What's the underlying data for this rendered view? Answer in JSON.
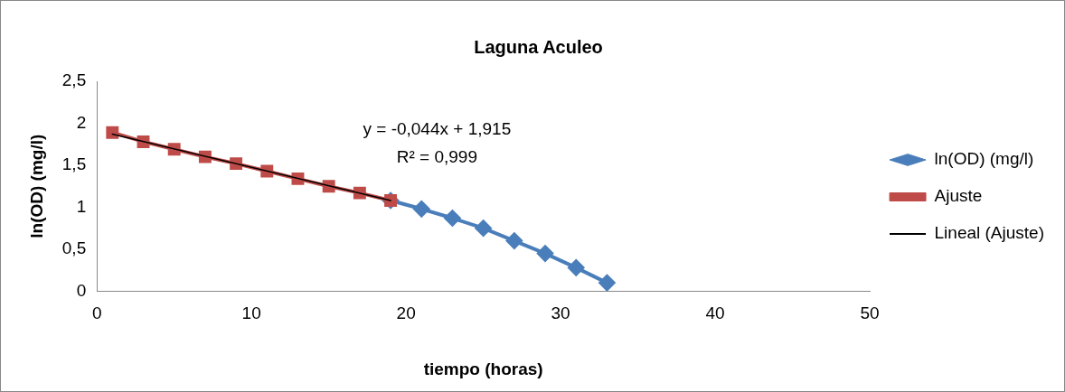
{
  "chart_data": {
    "type": "line",
    "title": "Laguna Aculeo",
    "xlabel": "tiempo (horas)",
    "ylabel": "ln(OD) (mg/l)",
    "series": [
      {
        "name": "ln(OD) (mg/l)",
        "color": "#4a7ebb",
        "marker": "diamond",
        "x": [
          19,
          21,
          23,
          25,
          27,
          29,
          31,
          33
        ],
        "values": [
          1.08,
          0.98,
          0.87,
          0.75,
          0.6,
          0.45,
          0.28,
          0.1
        ]
      },
      {
        "name": "Ajuste",
        "color": "#be4b48",
        "marker": "square",
        "x": [
          1,
          3,
          5,
          7,
          9,
          11,
          13,
          15,
          17,
          19
        ],
        "values": [
          1.89,
          1.78,
          1.69,
          1.6,
          1.52,
          1.43,
          1.34,
          1.25,
          1.17,
          1.08
        ]
      },
      {
        "name": "Lineal (Ajuste)",
        "color": "#000000",
        "marker": "none",
        "x": [
          1,
          19
        ],
        "values": [
          1.87,
          1.08
        ]
      }
    ],
    "xlim": [
      0,
      50
    ],
    "xticks": [
      0,
      10,
      20,
      30,
      40,
      50
    ],
    "ylim": [
      0,
      2.5
    ],
    "yticks": [
      0,
      {
        "value": 0.5,
        "label": "0,5"
      },
      1,
      {
        "value": 1.5,
        "label": "1,5"
      },
      2,
      {
        "value": 2.5,
        "label": "2,5"
      }
    ],
    "grid": false,
    "legend": "right",
    "annotations": [
      "y = -0,044x + 1,915",
      "R² = 0,999"
    ]
  }
}
